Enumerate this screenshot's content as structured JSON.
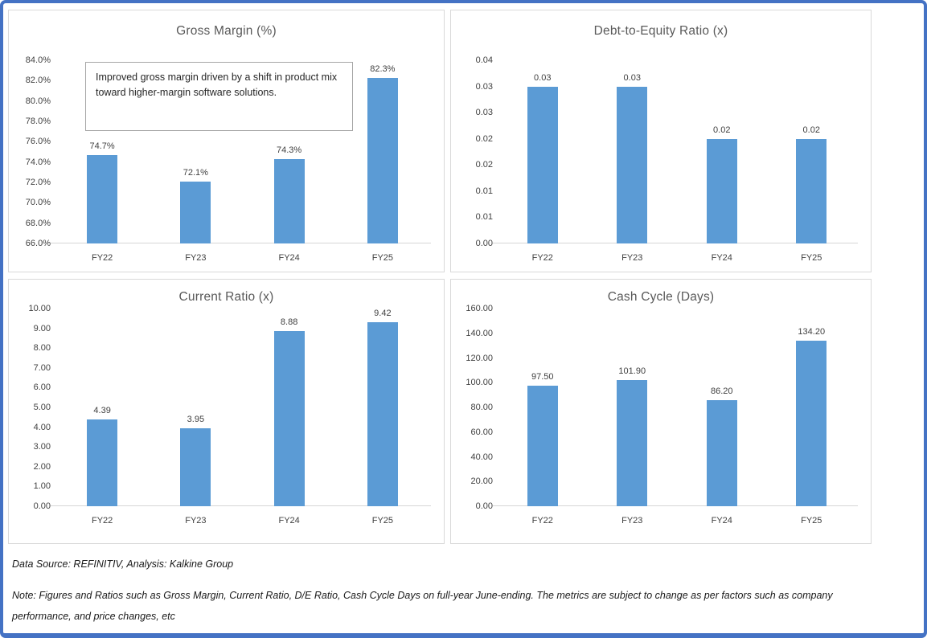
{
  "canvas": {
    "border_color": "#4472C4",
    "background": "#FFFFFF"
  },
  "styles": {
    "bar_color": "#5B9BD5",
    "title_color": "#595959",
    "axis_text_color": "#404040",
    "panel_border_color": "#D9D9D9",
    "annotation_border_color": "#A6A6A6"
  },
  "chart_data": [
    {
      "id": "gross-margin",
      "type": "bar",
      "title": "Gross Margin (%)",
      "categories": [
        "FY22",
        "FY23",
        "FY24",
        "FY25"
      ],
      "values": [
        74.7,
        72.1,
        74.3,
        82.3
      ],
      "data_labels": [
        "74.7%",
        "72.1%",
        "74.3%",
        "82.3%"
      ],
      "ylim": [
        66,
        84
      ],
      "ytick_labels_bottom_to_top": [
        "66.0%",
        "68.0%",
        "70.0%",
        "72.0%",
        "74.0%",
        "76.0%",
        "78.0%",
        "80.0%",
        "82.0%",
        "84.0%"
      ],
      "grid": false,
      "legend": "none",
      "annotation": "Improved gross margin driven by a shift in product mix toward higher-margin software solutions."
    },
    {
      "id": "debt-to-equity",
      "type": "bar",
      "title": "Debt-to-Equity Ratio (x)",
      "categories": [
        "FY22",
        "FY23",
        "FY24",
        "FY25"
      ],
      "values": [
        0.03,
        0.03,
        0.02,
        0.02
      ],
      "data_labels": [
        "0.03",
        "0.03",
        "0.02",
        "0.02"
      ],
      "ylim": [
        0,
        0.035
      ],
      "ytick_labels_bottom_to_top": [
        "0.00",
        "0.01",
        "0.01",
        "0.02",
        "0.02",
        "0.03",
        "0.03",
        "0.04"
      ],
      "grid": false,
      "legend": "none"
    },
    {
      "id": "current-ratio",
      "type": "bar",
      "title": "Current Ratio (x)",
      "categories": [
        "FY22",
        "FY23",
        "FY24",
        "FY25"
      ],
      "values": [
        4.39,
        3.95,
        8.88,
        9.42
      ],
      "data_labels": [
        "4.39",
        "3.95",
        "8.88",
        "9.42"
      ],
      "ylim": [
        0,
        10
      ],
      "ytick_labels_bottom_to_top": [
        "0.00",
        "1.00",
        "2.00",
        "3.00",
        "4.00",
        "5.00",
        "6.00",
        "7.00",
        "8.00",
        "9.00",
        "10.00"
      ],
      "grid": false,
      "legend": "none"
    },
    {
      "id": "cash-cycle",
      "type": "bar",
      "title": "Cash Cycle (Days)",
      "categories": [
        "FY22",
        "FY23",
        "FY24",
        "FY25"
      ],
      "values": [
        97.5,
        101.9,
        86.2,
        134.2
      ],
      "data_labels": [
        "97.50",
        "101.90",
        "86.20",
        "134.20"
      ],
      "ylim": [
        0,
        160
      ],
      "ytick_labels_bottom_to_top": [
        "0.00",
        "20.00",
        "40.00",
        "60.00",
        "80.00",
        "100.00",
        "120.00",
        "140.00",
        "160.00"
      ],
      "grid": false,
      "legend": "none"
    }
  ],
  "footer": {
    "source": "Data Source: REFINITIV, Analysis: Kalkine Group",
    "note": "Note: Figures and Ratios such as Gross Margin, Current Ratio, D/E Ratio, Cash Cycle Days on full-year June-ending. The metrics are subject to change as per factors such as company performance, and price changes, etc"
  }
}
